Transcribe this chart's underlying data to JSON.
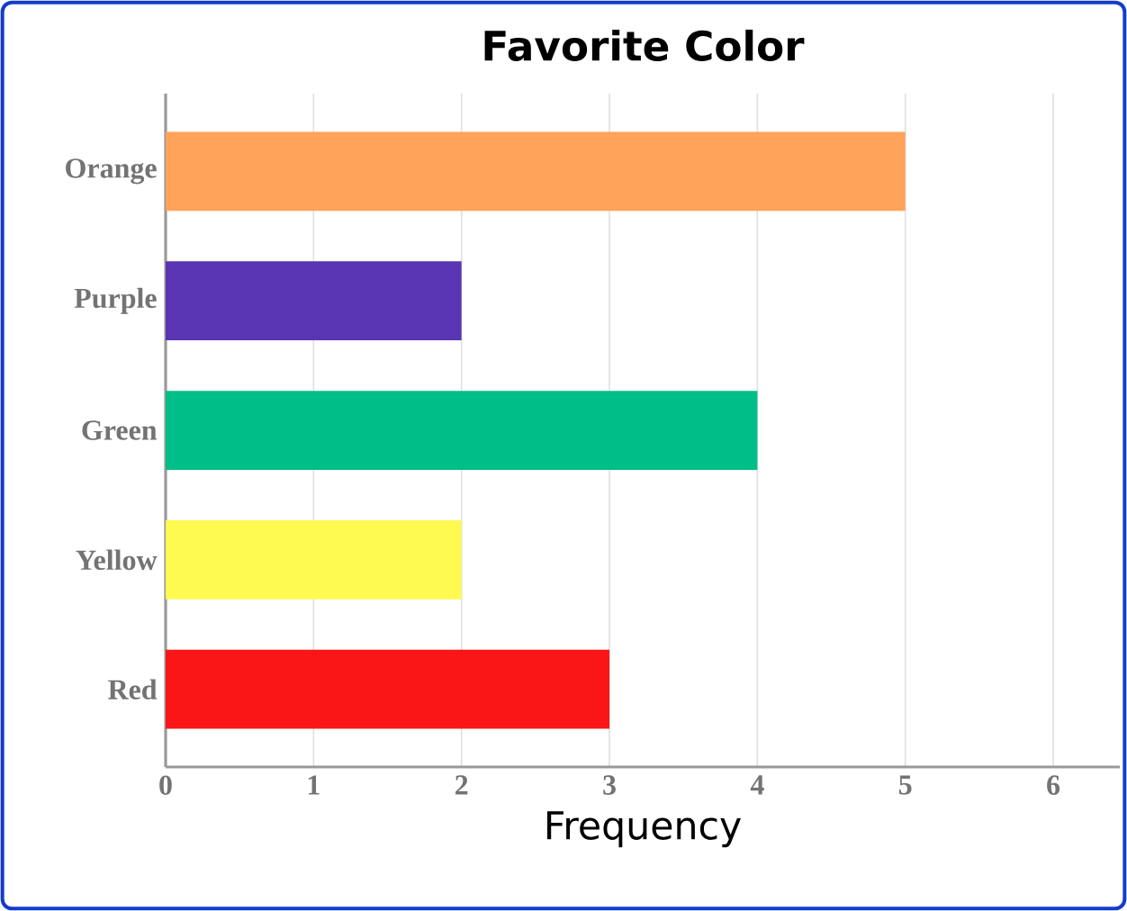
{
  "chart_data": {
    "type": "bar",
    "orientation": "horizontal",
    "title": "Favorite Color",
    "xlabel": "Frequency",
    "categories": [
      "Orange",
      "Purple",
      "Green",
      "Yellow",
      "Red"
    ],
    "values": [
      5,
      2,
      4,
      2,
      3
    ],
    "colors": [
      "#ffa25a",
      "#5935b4",
      "#00be87",
      "#fffa50",
      "#fa1616"
    ],
    "xlim": [
      0,
      6.45
    ],
    "xticks": [
      0,
      1,
      2,
      3,
      4,
      5,
      6
    ],
    "grid": "x"
  }
}
